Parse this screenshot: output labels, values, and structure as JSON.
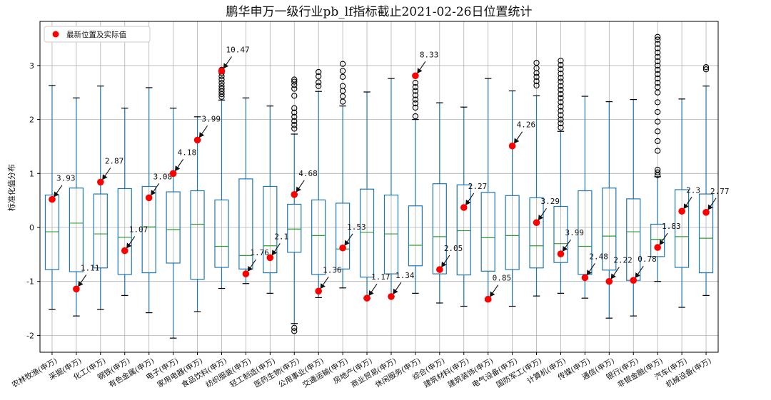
{
  "chart_data": {
    "type": "box",
    "title": "鹏华申万一级行业pb_lf指标截止2021-02-26日位置统计",
    "ylabel": "标准化值分布",
    "xlabel": "",
    "ylim": [
      -2.3,
      3.6
    ],
    "yticks": [
      -2,
      -1,
      0,
      1,
      2,
      3
    ],
    "grid": true,
    "legend": {
      "label": "最新位置及实际值",
      "placement": "top-left"
    },
    "colors": {
      "box": "#1f77b4",
      "median": "#2ca02c",
      "marker": "#ff0000",
      "grid": "#b0b0b0",
      "flier": "#000000"
    },
    "categories": [
      "农林牧渔(申万)",
      "采掘(申万)",
      "化工(申万)",
      "钢铁(申万)",
      "有色金属(申万)",
      "电子(申万)",
      "家用电器(申万)",
      "食品饮料(申万)",
      "纺织服装(申万)",
      "轻工制造(申万)",
      "医药生物(申万)",
      "公用事业(申万)",
      "交通运输(申万)",
      "房地产(申万)",
      "商业贸易(申万)",
      "休闲服务(申万)",
      "综合(申万)",
      "建筑材料(申万)",
      "建筑装饰(申万)",
      "电气设备(申万)",
      "国防军工(申万)",
      "计算机(申万)",
      "传媒(申万)",
      "通信(申万)",
      "银行(申万)",
      "非银金融(申万)",
      "汽车(申万)",
      "机械设备(申万)"
    ],
    "boxes": [
      {
        "wl": -1.52,
        "q1": -0.78,
        "med": -0.08,
        "q3": 0.6,
        "wh": 2.63,
        "fliers": []
      },
      {
        "wl": -1.64,
        "q1": -0.82,
        "med": 0.08,
        "q3": 0.73,
        "wh": 2.4,
        "fliers": []
      },
      {
        "wl": -1.52,
        "q1": -0.75,
        "med": -0.12,
        "q3": 0.62,
        "wh": 2.62,
        "fliers": []
      },
      {
        "wl": -1.26,
        "q1": -0.87,
        "med": -0.18,
        "q3": 0.72,
        "wh": 2.21,
        "fliers": []
      },
      {
        "wl": -1.58,
        "q1": -0.84,
        "med": 0.01,
        "q3": 0.76,
        "wh": 2.59,
        "fliers": []
      },
      {
        "wl": -2.05,
        "q1": -0.66,
        "med": -0.04,
        "q3": 0.66,
        "wh": 2.21,
        "fliers": []
      },
      {
        "wl": -1.56,
        "q1": -0.96,
        "med": 0.06,
        "q3": 0.68,
        "wh": 2.05,
        "fliers": []
      },
      {
        "wl": -1.13,
        "q1": -0.74,
        "med": -0.35,
        "q3": 0.51,
        "wh": 2.36,
        "fliers": [
          2.42,
          2.47,
          2.52,
          2.57,
          2.62,
          2.68,
          2.74,
          2.8,
          2.86,
          2.92
        ]
      },
      {
        "wl": -1.04,
        "q1": -0.77,
        "med": -0.52,
        "q3": 0.9,
        "wh": 2.4,
        "fliers": []
      },
      {
        "wl": -1.22,
        "q1": -0.84,
        "med": -0.34,
        "q3": 0.76,
        "wh": 2.25,
        "fliers": []
      },
      {
        "wl": -1.78,
        "q1": -0.46,
        "med": -0.03,
        "q3": 0.43,
        "wh": 1.73,
        "fliers": [
          -1.92,
          -1.86,
          1.83,
          1.9,
          1.97,
          2.05,
          2.13,
          2.21,
          2.44,
          2.57,
          2.64,
          2.7,
          2.74
        ]
      },
      {
        "wl": -1.3,
        "q1": -0.87,
        "med": -0.15,
        "q3": 0.51,
        "wh": 2.52,
        "fliers": [
          2.62,
          2.69,
          2.8,
          2.88
        ]
      },
      {
        "wl": -1.12,
        "q1": -0.77,
        "med": -0.4,
        "q3": 0.45,
        "wh": 2.25,
        "fliers": [
          2.33,
          2.43,
          2.53,
          2.62,
          2.79,
          2.9,
          3.03
        ]
      },
      {
        "wl": -1.32,
        "q1": -0.92,
        "med": -0.09,
        "q3": 0.71,
        "wh": 2.51,
        "fliers": []
      },
      {
        "wl": -1.28,
        "q1": -0.86,
        "med": -0.12,
        "q3": 0.6,
        "wh": 2.76,
        "fliers": []
      },
      {
        "wl": -1.22,
        "q1": -0.71,
        "med": -0.33,
        "q3": 0.4,
        "wh": 2.0,
        "fliers": [
          2.06,
          2.22,
          2.3,
          2.37,
          2.45,
          2.53,
          2.6,
          2.68
        ]
      },
      {
        "wl": -1.4,
        "q1": -0.86,
        "med": -0.17,
        "q3": 0.81,
        "wh": 2.31,
        "fliers": []
      },
      {
        "wl": -1.46,
        "q1": -0.88,
        "med": -0.06,
        "q3": 0.79,
        "wh": 2.23,
        "fliers": []
      },
      {
        "wl": -1.35,
        "q1": -0.81,
        "med": -0.19,
        "q3": 0.65,
        "wh": 2.76,
        "fliers": []
      },
      {
        "wl": -1.46,
        "q1": -0.78,
        "med": -0.15,
        "q3": 0.59,
        "wh": 2.53,
        "fliers": []
      },
      {
        "wl": -1.27,
        "q1": -0.75,
        "med": -0.34,
        "q3": 0.55,
        "wh": 2.44,
        "fliers": [
          2.63,
          2.71,
          2.79,
          2.86,
          2.95,
          3.05
        ]
      },
      {
        "wl": -1.22,
        "q1": -0.65,
        "med": -0.3,
        "q3": 0.39,
        "wh": 1.78,
        "fliers": [
          1.85,
          1.93,
          2.0,
          2.08,
          2.16,
          2.24,
          2.32,
          2.4,
          2.47,
          2.55,
          2.62,
          2.7,
          2.77,
          2.85,
          2.93,
          3.01,
          3.09
        ]
      },
      {
        "wl": -1.31,
        "q1": -0.87,
        "med": -0.35,
        "q3": 0.68,
        "wh": 2.43,
        "fliers": []
      },
      {
        "wl": -1.68,
        "q1": -0.79,
        "med": -0.16,
        "q3": 0.73,
        "wh": 2.33,
        "fliers": []
      },
      {
        "wl": -1.64,
        "q1": -0.98,
        "med": -0.08,
        "q3": 0.53,
        "wh": 2.37,
        "fliers": []
      },
      {
        "wl": -1.0,
        "q1": -0.54,
        "med": -0.22,
        "q3": 0.06,
        "wh": 0.94,
        "fliers": [
          0.97,
          1.02,
          1.07,
          1.42,
          1.6,
          1.78,
          1.96,
          2.14,
          2.32,
          2.5,
          2.6,
          2.68,
          2.76,
          2.84,
          2.92,
          3.0,
          3.08,
          3.16,
          3.24,
          3.32,
          3.4,
          3.48,
          3.53
        ]
      },
      {
        "wl": -1.48,
        "q1": -0.74,
        "med": -0.17,
        "q3": 0.7,
        "wh": 2.38,
        "fliers": []
      },
      {
        "wl": -1.26,
        "q1": -0.84,
        "med": -0.2,
        "q3": 0.62,
        "wh": 2.62,
        "fliers": [
          2.93,
          2.97
        ]
      }
    ],
    "latest": [
      {
        "y": 0.52,
        "label": "3.93"
      },
      {
        "y": -1.14,
        "label": "1.11"
      },
      {
        "y": 0.84,
        "label": "2.87"
      },
      {
        "y": -0.43,
        "label": "1.07"
      },
      {
        "y": 0.55,
        "label": "3.08"
      },
      {
        "y": 1.0,
        "label": "4.18"
      },
      {
        "y": 1.62,
        "label": "3.99"
      },
      {
        "y": 2.9,
        "label": "10.47"
      },
      {
        "y": -0.86,
        "label": "1.76"
      },
      {
        "y": -0.56,
        "label": "2.1"
      },
      {
        "y": 0.61,
        "label": "4.68"
      },
      {
        "y": -1.18,
        "label": "1.36"
      },
      {
        "y": -0.38,
        "label": "1.53"
      },
      {
        "y": -1.31,
        "label": "1.17"
      },
      {
        "y": -1.28,
        "label": "1.34"
      },
      {
        "y": 2.81,
        "label": "8.33"
      },
      {
        "y": -0.78,
        "label": "2.05"
      },
      {
        "y": 0.37,
        "label": "2.27"
      },
      {
        "y": -1.33,
        "label": "0.85"
      },
      {
        "y": 1.51,
        "label": "4.26"
      },
      {
        "y": 0.09,
        "label": "3.29"
      },
      {
        "y": -0.49,
        "label": "3.99"
      },
      {
        "y": -0.93,
        "label": "2.48"
      },
      {
        "y": -1.0,
        "label": "2.22"
      },
      {
        "y": -0.98,
        "label": "0.78"
      },
      {
        "y": -0.37,
        "label": "1.83"
      },
      {
        "y": 0.3,
        "label": "2.3"
      },
      {
        "y": 0.28,
        "label": "2.77"
      }
    ]
  }
}
